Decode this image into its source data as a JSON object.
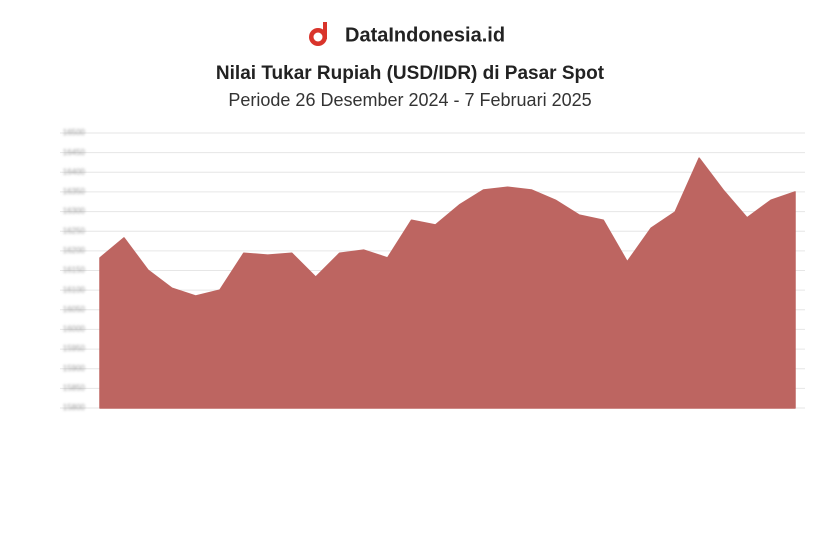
{
  "header": {
    "brand": "DataIndonesia.id"
  },
  "chart_data": {
    "type": "area",
    "title": "Nilai Tukar Rupiah (USD/IDR) di Pasar Spot",
    "subtitle": "Periode 26 Desember 2024 - 7 Februari 2025",
    "color": "#bd6561",
    "categories": [
      null,
      null,
      null,
      null,
      null,
      null,
      null,
      null,
      null,
      null,
      null,
      null,
      null,
      null,
      null,
      null,
      null,
      null,
      null,
      null,
      null,
      null,
      null,
      null,
      null,
      null,
      null,
      null,
      null,
      null
    ],
    "values": [
      16182,
      16233,
      16151,
      16105,
      16085,
      16100,
      16194,
      16189,
      16194,
      16133,
      16194,
      16202,
      16182,
      16278,
      16266,
      16317,
      16355,
      16362,
      16355,
      16329,
      16291,
      16278,
      16172,
      16258,
      16299,
      16436,
      16355,
      16284,
      16329,
      16350
    ],
    "ylim": [
      15800,
      16500
    ],
    "yticks": [
      15800,
      15850,
      15900,
      15950,
      16000,
      16050,
      16100,
      16150,
      16200,
      16250,
      16300,
      16350,
      16400,
      16450,
      16500
    ],
    "grid": true
  }
}
